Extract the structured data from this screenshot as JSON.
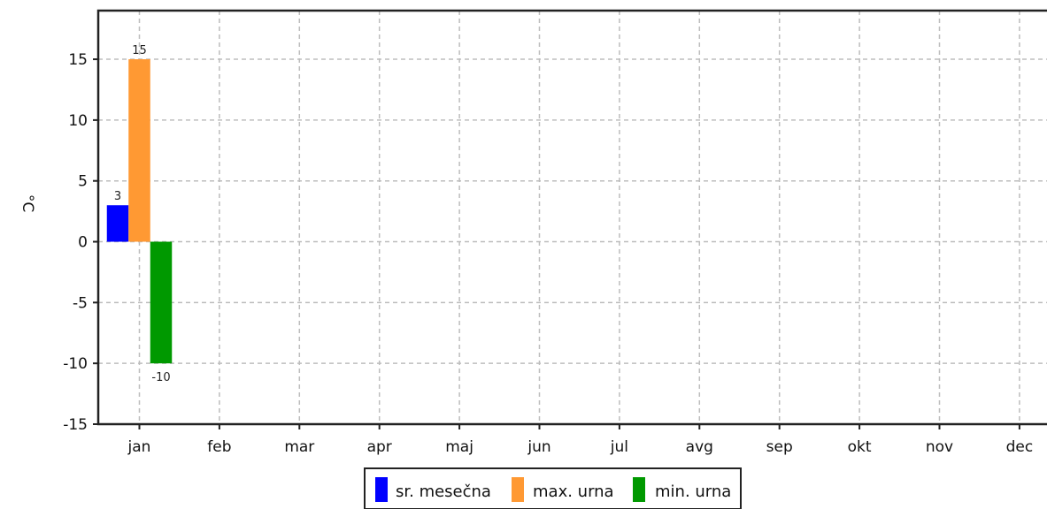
{
  "chart_data": {
    "type": "bar",
    "title": "",
    "xlabel": "",
    "ylabel": "°C",
    "ylim": [
      -15,
      19
    ],
    "yticks": [
      15,
      10,
      5,
      0,
      -5,
      -10,
      -15
    ],
    "grid": true,
    "legend_position": "bottom-center",
    "categories": [
      "jan",
      "feb",
      "mar",
      "apr",
      "maj",
      "jun",
      "jul",
      "avg",
      "sep",
      "okt",
      "nov",
      "dec"
    ],
    "series": [
      {
        "name": "sr. mesečna",
        "color": "#0000ff",
        "values": [
          3,
          null,
          null,
          null,
          null,
          null,
          null,
          null,
          null,
          null,
          null,
          null
        ]
      },
      {
        "name": "max. urna",
        "color": "#ff9933",
        "values": [
          15,
          null,
          null,
          null,
          null,
          null,
          null,
          null,
          null,
          null,
          null,
          null
        ]
      },
      {
        "name": "min. urna",
        "color": "#009900",
        "values": [
          -10,
          null,
          null,
          null,
          null,
          null,
          null,
          null,
          null,
          null,
          null,
          null
        ]
      }
    ],
    "data_labels": [
      {
        "series": 0,
        "category": 0,
        "text": "3"
      },
      {
        "series": 1,
        "category": 0,
        "text": "15"
      },
      {
        "series": 2,
        "category": 0,
        "text": "-10"
      }
    ]
  }
}
